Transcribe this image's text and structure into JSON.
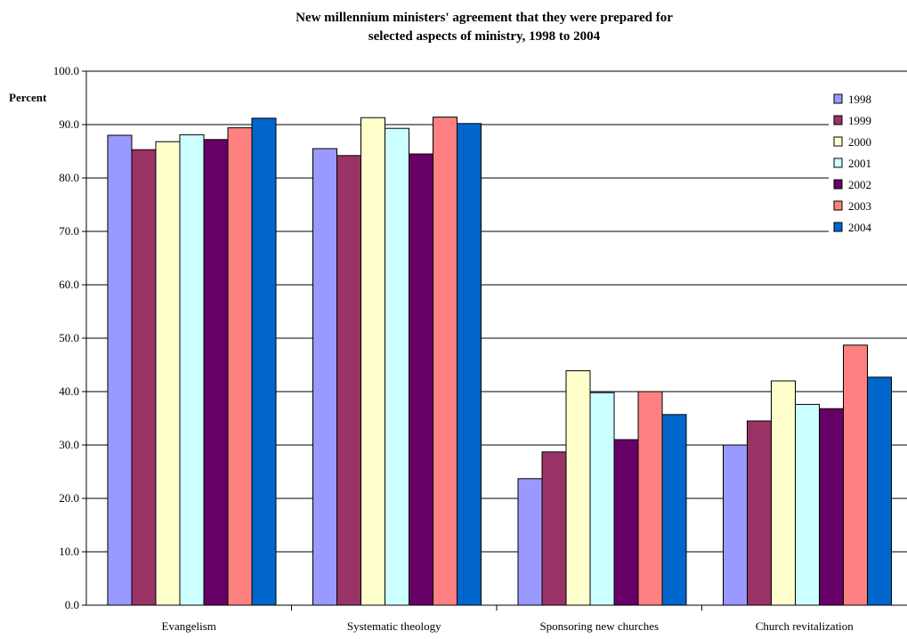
{
  "chart_data": {
    "type": "bar",
    "title_line1": "New millennium ministers' agreement that  they were prepared for",
    "title_line2": "selected aspects of ministry, 1998 to 2004",
    "ylabel": "Percent",
    "xlabel": "",
    "ylim": [
      0,
      100
    ],
    "yticks": [
      "0.0",
      "10.0",
      "20.0",
      "30.0",
      "40.0",
      "50.0",
      "60.0",
      "70.0",
      "80.0",
      "90.0",
      "100.0"
    ],
    "grid": true,
    "legend_position": "right",
    "categories": [
      "Evangelism",
      "Systematic theology",
      "Sponsoring new churches",
      "Church revitalization"
    ],
    "series": [
      {
        "name": "1998",
        "color": "#9999FF",
        "values": [
          88.0,
          85.5,
          23.7,
          30.0
        ]
      },
      {
        "name": "1999",
        "color": "#993366",
        "values": [
          85.3,
          84.2,
          28.7,
          34.5
        ]
      },
      {
        "name": "2000",
        "color": "#FFFFCC",
        "values": [
          86.8,
          91.3,
          43.9,
          42.0
        ]
      },
      {
        "name": "2001",
        "color": "#CCFFFF",
        "values": [
          88.1,
          89.3,
          39.8,
          37.6
        ]
      },
      {
        "name": "2002",
        "color": "#660066",
        "values": [
          87.2,
          84.5,
          31.0,
          36.8
        ]
      },
      {
        "name": "2003",
        "color": "#FF8080",
        "values": [
          89.4,
          91.4,
          40.0,
          48.7
        ]
      },
      {
        "name": "2004",
        "color": "#0066CC",
        "values": [
          91.2,
          90.2,
          35.7,
          42.7
        ]
      }
    ]
  }
}
